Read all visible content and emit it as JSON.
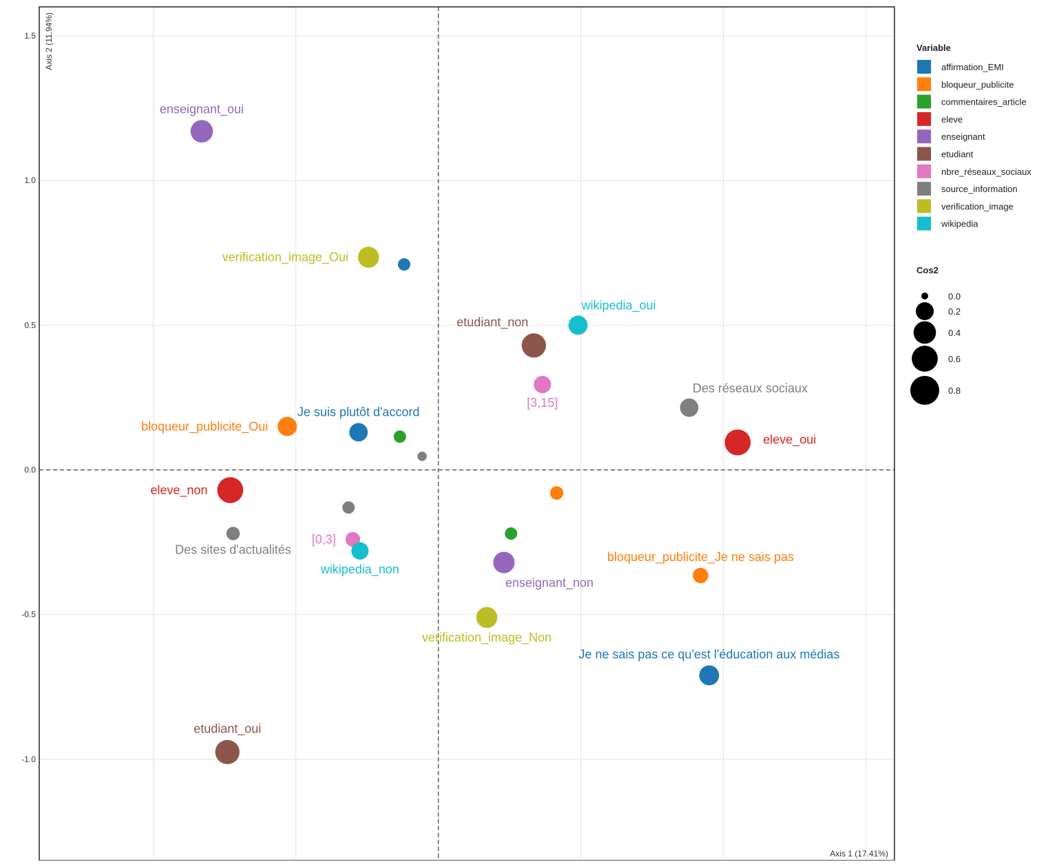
{
  "chart_data": {
    "type": "scatter",
    "xlabel": "Axis 1 (17.41%)",
    "ylabel": "Axis 2 (11.94%)",
    "xlim": [
      -1.4,
      1.6
    ],
    "ylim": [
      -1.35,
      1.6
    ],
    "xticks": [
      -1.0,
      -0.5,
      0.0,
      0.5,
      1.0,
      1.5
    ],
    "yticks": [
      {
        "value": 1.5,
        "label": "1.5"
      },
      {
        "value": 1.0,
        "label": "1.0"
      },
      {
        "value": 0.5,
        "label": "0.5"
      },
      {
        "value": 0.0,
        "label": "0.0"
      },
      {
        "value": -0.5,
        "label": "-0.5"
      },
      {
        "value": -1.0,
        "label": "-1.0"
      }
    ],
    "grid": true,
    "reference_lines": {
      "x": 0,
      "y": 0,
      "style": "dashed"
    },
    "legend_variable": {
      "title": "Variable",
      "placement": "right",
      "entries": [
        {
          "name": "affirmation_EMI",
          "color": "#1f77b4"
        },
        {
          "name": "bloqueur_publicite",
          "color": "#ff7f0e"
        },
        {
          "name": "commentaires_article",
          "color": "#2ca02c"
        },
        {
          "name": "eleve",
          "color": "#d62728"
        },
        {
          "name": "enseignant",
          "color": "#9467bd"
        },
        {
          "name": "etudiant",
          "color": "#8c564b"
        },
        {
          "name": "nbre_réseaux_sociaux",
          "color": "#e377c2"
        },
        {
          "name": "source_information",
          "color": "#7f7f7f"
        },
        {
          "name": "verification_image",
          "color": "#bcbd22"
        },
        {
          "name": "wikipedia",
          "color": "#17becf"
        }
      ]
    },
    "legend_cos2": {
      "title": "Cos2",
      "placement": "right",
      "entries": [
        {
          "label": "0.0",
          "value": 0.0
        },
        {
          "label": "0.2",
          "value": 0.2
        },
        {
          "label": "0.4",
          "value": 0.4
        },
        {
          "label": "0.6",
          "value": 0.6
        },
        {
          "label": "0.8",
          "value": 0.8
        }
      ]
    },
    "points": [
      {
        "label": "enseignant_oui",
        "variable": "enseignant",
        "x": -0.83,
        "y": 1.17,
        "cos2": 0.4,
        "label_pos": "above"
      },
      {
        "label": "verification_image_Oui",
        "variable": "verification_image",
        "x": -0.245,
        "y": 0.735,
        "cos2": 0.33,
        "label_pos": "left"
      },
      {
        "label": "",
        "variable": "affirmation_EMI",
        "x": -0.12,
        "y": 0.71,
        "cos2": 0.05,
        "label_pos": "none"
      },
      {
        "label": "etudiant_non",
        "variable": "etudiant",
        "x": 0.335,
        "y": 0.43,
        "cos2": 0.5,
        "label_pos": "above-left"
      },
      {
        "label": "wikipedia_oui",
        "variable": "wikipedia",
        "x": 0.49,
        "y": 0.5,
        "cos2": 0.25,
        "label_pos": "above-right"
      },
      {
        "label": "[3,15]",
        "variable": "nbre_réseaux_sociaux",
        "x": 0.365,
        "y": 0.295,
        "cos2": 0.18,
        "label_pos": "below"
      },
      {
        "label": "Des réseaux sociaux",
        "variable": "source_information",
        "x": 0.88,
        "y": 0.215,
        "cos2": 0.22,
        "label_pos": "above-right"
      },
      {
        "label": "eleve_oui",
        "variable": "eleve",
        "x": 1.05,
        "y": 0.095,
        "cos2": 0.6,
        "label_pos": "right"
      },
      {
        "label": "Je suis plutôt d'accord",
        "variable": "affirmation_EMI",
        "x": -0.28,
        "y": 0.13,
        "cos2": 0.22,
        "label_pos": "above"
      },
      {
        "label": "bloqueur_publicite_Oui",
        "variable": "bloqueur_publicite",
        "x": -0.53,
        "y": 0.15,
        "cos2": 0.25,
        "label_pos": "left"
      },
      {
        "label": "",
        "variable": "commentaires_article",
        "x": -0.135,
        "y": 0.115,
        "cos2": 0.05,
        "label_pos": "none"
      },
      {
        "label": "",
        "variable": "source_information",
        "x": -0.057,
        "y": 0.047,
        "cos2": 0.01,
        "label_pos": "none"
      },
      {
        "label": "eleve_non",
        "variable": "eleve",
        "x": -0.73,
        "y": -0.07,
        "cos2": 0.6,
        "label_pos": "left"
      },
      {
        "label": "",
        "variable": "source_information",
        "x": -0.315,
        "y": -0.13,
        "cos2": 0.05,
        "label_pos": "none"
      },
      {
        "label": "",
        "variable": "bloqueur_publicite",
        "x": 0.415,
        "y": -0.08,
        "cos2": 0.07,
        "label_pos": "none"
      },
      {
        "label": "",
        "variable": "commentaires_article",
        "x": 0.255,
        "y": -0.22,
        "cos2": 0.05,
        "label_pos": "none"
      },
      {
        "label": "Des sites d'actualités",
        "variable": "source_information",
        "x": -0.72,
        "y": -0.22,
        "cos2": 0.07,
        "label_pos": "below"
      },
      {
        "label": "[0,3]",
        "variable": "nbre_réseaux_sociaux",
        "x": -0.3,
        "y": -0.24,
        "cos2": 0.1,
        "label_pos": "left"
      },
      {
        "label": "wikipedia_non",
        "variable": "wikipedia",
        "x": -0.275,
        "y": -0.28,
        "cos2": 0.18,
        "label_pos": "below"
      },
      {
        "label": "enseignant_non",
        "variable": "enseignant",
        "x": 0.23,
        "y": -0.32,
        "cos2": 0.35,
        "label_pos": "below-right"
      },
      {
        "label": "bloqueur_publicite_Je ne sais pas",
        "variable": "bloqueur_publicite",
        "x": 0.92,
        "y": -0.365,
        "cos2": 0.12,
        "label_pos": "above"
      },
      {
        "label": "verification_image_Non",
        "variable": "verification_image",
        "x": 0.17,
        "y": -0.51,
        "cos2": 0.33,
        "label_pos": "below"
      },
      {
        "label": "Je ne sais pas ce qu'est l'éducation aux médias",
        "variable": "affirmation_EMI",
        "x": 0.95,
        "y": -0.71,
        "cos2": 0.28,
        "label_pos": "above"
      },
      {
        "label": "etudiant_oui",
        "variable": "etudiant",
        "x": -0.74,
        "y": -0.975,
        "cos2": 0.5,
        "label_pos": "above"
      }
    ]
  }
}
